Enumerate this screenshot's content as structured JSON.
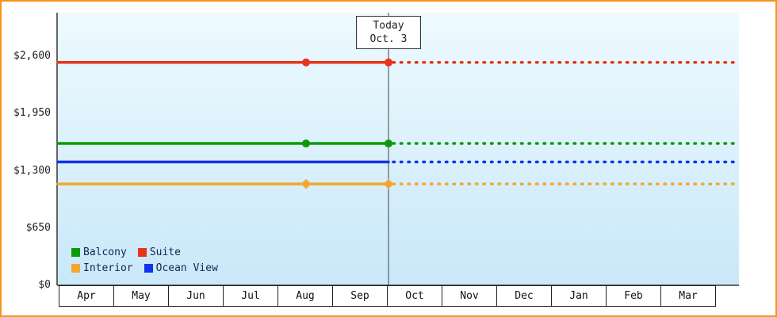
{
  "chart_data": {
    "type": "line",
    "title": "",
    "categories": [
      "Apr",
      "May",
      "Jun",
      "Jul",
      "Aug",
      "Sep",
      "Oct",
      "Nov",
      "Dec",
      "Jan",
      "Feb",
      "Mar"
    ],
    "y_ticks": [
      {
        "label": "$0",
        "value": 0
      },
      {
        "label": "$650",
        "value": 650
      },
      {
        "label": "$1,300",
        "value": 1300
      },
      {
        "label": "$1,950",
        "value": 1950
      },
      {
        "label": "$2,600",
        "value": 2600
      }
    ],
    "ylim": [
      0,
      2600
    ],
    "grid": false,
    "legend_position": "bottom-left-inside",
    "today": {
      "line1": "Today",
      "line2": "Oct. 3",
      "boundary_after_month": "Sep",
      "note": "solid lines before today, dotted projection after"
    },
    "series": [
      {
        "name": "Suite",
        "color": "#e8341c",
        "value": 2530,
        "marker": "circle",
        "marker_months": [
          "Aug",
          "today"
        ]
      },
      {
        "name": "Balcony",
        "color": "#0b9a0b",
        "value": 1610,
        "marker": "circle",
        "marker_months": [
          "Aug",
          "today"
        ]
      },
      {
        "name": "Ocean View",
        "color": "#1133ee",
        "value": 1400,
        "marker": "none",
        "marker_months": []
      },
      {
        "name": "Interior",
        "color": "#f0a830",
        "value": 1150,
        "marker": "diamond",
        "marker_months": [
          "Aug",
          "today"
        ]
      }
    ],
    "legend_rows": [
      [
        "Balcony",
        "Suite"
      ],
      [
        "Interior",
        "Ocean View"
      ]
    ]
  }
}
